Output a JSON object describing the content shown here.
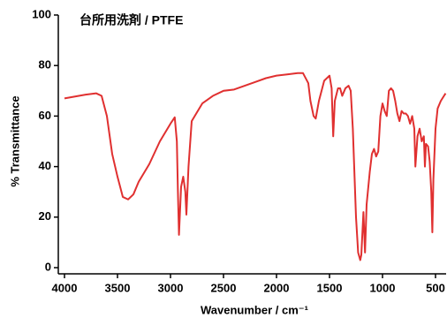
{
  "chart_data": {
    "type": "line",
    "title": "台所用洗剤 / PTFE",
    "x_label": "Wavenumber / cm⁻¹",
    "y_label": "% Transmittance",
    "xlim": [
      4000,
      400
    ],
    "xticks": [
      4000,
      3500,
      3000,
      2500,
      2000,
      1500,
      1000,
      500
    ],
    "ylim": [
      0,
      100
    ],
    "yticks": [
      0,
      20,
      40,
      60,
      80,
      100
    ],
    "x": [
      4000,
      3800,
      3700,
      3650,
      3600,
      3550,
      3500,
      3450,
      3400,
      3350,
      3300,
      3200,
      3100,
      3000,
      2960,
      2940,
      2930,
      2920,
      2900,
      2880,
      2860,
      2850,
      2830,
      2800,
      2700,
      2600,
      2500,
      2400,
      2300,
      2200,
      2100,
      2000,
      1900,
      1800,
      1750,
      1700,
      1680,
      1650,
      1630,
      1600,
      1550,
      1500,
      1480,
      1465,
      1450,
      1420,
      1400,
      1380,
      1350,
      1320,
      1300,
      1280,
      1250,
      1230,
      1210,
      1200,
      1180,
      1165,
      1150,
      1120,
      1100,
      1080,
      1060,
      1040,
      1020,
      1000,
      980,
      960,
      940,
      920,
      900,
      880,
      860,
      840,
      820,
      800,
      780,
      760,
      740,
      720,
      700,
      690,
      670,
      650,
      630,
      610,
      600,
      590,
      570,
      555,
      540,
      530,
      520,
      500,
      480,
      450,
      420,
      405
    ],
    "series": [
      {
        "name": "台所用洗剤 / PTFE",
        "color": "#e03030",
        "values": [
          67,
          68.5,
          69,
          68,
          60,
          45,
          36,
          28,
          27,
          29,
          34,
          41,
          50,
          57,
          59.5,
          50,
          30,
          13,
          32,
          36,
          30,
          21,
          40,
          58,
          65,
          68,
          70,
          70.5,
          72,
          73.5,
          75,
          76,
          76.5,
          77,
          77,
          73,
          66,
          60,
          59,
          66,
          74,
          76,
          71,
          52,
          66,
          71,
          71,
          68,
          71,
          72,
          70,
          55,
          20,
          6,
          3,
          5,
          22,
          6,
          25,
          38,
          45,
          47,
          44,
          46,
          60,
          65,
          62,
          60,
          70,
          71,
          70,
          66,
          61,
          58,
          62,
          61,
          61,
          60,
          57,
          60,
          55,
          40,
          52,
          55,
          50,
          52,
          40,
          49,
          48,
          42,
          30,
          14,
          35,
          55,
          63,
          66,
          68,
          69
        ]
      }
    ]
  }
}
